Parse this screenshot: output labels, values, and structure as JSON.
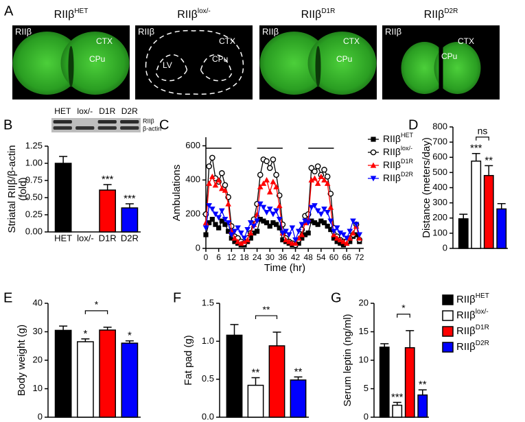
{
  "panel_a": {
    "letter": "A",
    "images": [
      {
        "title": "RIIβ",
        "sup": "HET",
        "stain": "RIIβ",
        "labels": [
          "CTX",
          "CPu"
        ]
      },
      {
        "title": "RIIβ",
        "sup": "lox/-",
        "stain": "RIIβ",
        "labels": [
          "CTX",
          "CPu",
          "LV"
        ]
      },
      {
        "title": "RIIβ",
        "sup": "D1R",
        "stain": "RIIβ",
        "labels": [
          "CTX",
          "CPu"
        ]
      },
      {
        "title": "RIIβ",
        "sup": "D2R",
        "stain": "RIIβ",
        "labels": [
          "CTX",
          "CPu"
        ]
      }
    ]
  },
  "chart_data": [
    {
      "type": "bar",
      "panel": "B",
      "ylabel_lines": [
        "Striatal RIIβ/β-actin",
        "(fold)"
      ],
      "blot": {
        "lanes": [
          "HET",
          "lox/-",
          "D1R",
          "D2R"
        ],
        "bands": [
          "RIIβ",
          "β-actin"
        ]
      },
      "categories": [
        "HET",
        "lox/-",
        "D1R",
        "D2R"
      ],
      "values": [
        1.0,
        0,
        0.61,
        0.35
      ],
      "errors": [
        0.1,
        null,
        0.08,
        0.06
      ],
      "colors": [
        "#000000",
        "#ffffff",
        "#ff0000",
        "#0000ff"
      ],
      "annotations": [
        null,
        null,
        "***",
        "***"
      ],
      "ylim": [
        0,
        1.25
      ],
      "yticks": [
        {
          "value": 0,
          "label": "0.00"
        },
        {
          "value": 0.25,
          "label": "0.25"
        },
        {
          "value": 0.5,
          "label": "0.50"
        },
        {
          "value": 0.75,
          "label": "0.75"
        },
        {
          "value": 1,
          "label": "1.00"
        },
        {
          "value": 1.25,
          "label": "1.25"
        }
      ]
    },
    {
      "type": "line",
      "panel": "C",
      "xlabel": "Time (hr)",
      "ylabel": "Ambulations",
      "dark_periods": [
        [
          0,
          12
        ],
        [
          24,
          36
        ],
        [
          48,
          60
        ]
      ],
      "x": [
        0,
        1.5,
        3,
        4.5,
        6,
        7.5,
        9,
        10.5,
        12,
        13.5,
        15,
        16.5,
        18,
        19.5,
        21,
        22.5,
        24,
        25.5,
        27,
        28.5,
        30,
        31.5,
        33,
        34.5,
        36,
        37.5,
        39,
        40.5,
        42,
        43.5,
        45,
        46.5,
        48,
        49.5,
        51,
        52.5,
        54,
        55.5,
        57,
        58.5,
        60,
        61.5,
        63,
        64.5,
        66,
        67.5,
        69,
        70.5,
        72
      ],
      "xlim": [
        0,
        74
      ],
      "xticks": [
        0,
        6,
        12,
        18,
        24,
        30,
        36,
        42,
        48,
        54,
        60,
        66,
        72
      ],
      "ylim": [
        0,
        650
      ],
      "yticks": [
        0,
        200,
        400,
        600
      ],
      "legend": "right",
      "series": [
        {
          "name": "RIIβ",
          "sup": "HET",
          "color": "#000000",
          "marker": "square",
          "values": [
            80,
            150,
            170,
            140,
            120,
            160,
            140,
            100,
            60,
            40,
            30,
            20,
            20,
            40,
            60,
            90,
            100,
            170,
            160,
            150,
            130,
            150,
            140,
            120,
            50,
            40,
            30,
            20,
            20,
            30,
            60,
            80,
            90,
            160,
            150,
            140,
            160,
            150,
            130,
            110,
            60,
            40,
            30,
            20,
            30,
            40,
            70,
            80,
            40
          ]
        },
        {
          "name": "RIIβ",
          "sup": "lox/-",
          "color": "#000000",
          "marker": "circle",
          "values": [
            200,
            480,
            530,
            410,
            390,
            440,
            370,
            300,
            130,
            70,
            60,
            40,
            30,
            60,
            90,
            170,
            260,
            430,
            520,
            510,
            470,
            520,
            430,
            310,
            140,
            60,
            40,
            30,
            20,
            50,
            110,
            190,
            200,
            470,
            450,
            480,
            430,
            460,
            420,
            320,
            120,
            70,
            50,
            40,
            40,
            60,
            80,
            140,
            50
          ]
        },
        {
          "name": "RIIβ",
          "sup": "D1R",
          "color": "#ff0000",
          "marker": "triangle-up",
          "values": [
            150,
            380,
            420,
            370,
            400,
            350,
            340,
            260,
            100,
            60,
            40,
            30,
            40,
            50,
            90,
            140,
            200,
            360,
            380,
            400,
            330,
            390,
            360,
            250,
            90,
            50,
            40,
            30,
            30,
            60,
            80,
            150,
            170,
            400,
            410,
            380,
            420,
            400,
            380,
            240,
            80,
            60,
            50,
            40,
            30,
            60,
            90,
            130,
            60
          ]
        },
        {
          "name": "RIIβ",
          "sup": "D2R",
          "color": "#0000ff",
          "marker": "triangle-down",
          "values": [
            120,
            250,
            230,
            200,
            180,
            220,
            170,
            150,
            80,
            100,
            120,
            90,
            60,
            110,
            150,
            130,
            160,
            260,
            240,
            210,
            230,
            200,
            220,
            170,
            90,
            100,
            80,
            120,
            50,
            100,
            140,
            160,
            150,
            240,
            250,
            220,
            200,
            230,
            210,
            160,
            100,
            120,
            90,
            80,
            60,
            100,
            160,
            140,
            80
          ]
        }
      ]
    },
    {
      "type": "bar",
      "panel": "D",
      "ylabel": "Distance (meters/day)",
      "categories": [
        null,
        null,
        null,
        null
      ],
      "values": [
        195,
        575,
        480,
        260
      ],
      "errors": [
        30,
        50,
        65,
        35
      ],
      "colors": [
        "#000000",
        "#ffffff",
        "#ff0000",
        "#0000ff"
      ],
      "annotations": [
        null,
        "***",
        "**",
        null
      ],
      "bracket": {
        "between": [
          1,
          2
        ],
        "label": "ns"
      },
      "ylim": [
        0,
        800
      ],
      "yticks": [
        0,
        100,
        200,
        300,
        400,
        500,
        600,
        700,
        800
      ]
    },
    {
      "type": "bar",
      "panel": "E",
      "ylabel": "Body weight (g)",
      "categories": [
        null,
        null,
        null,
        null
      ],
      "values": [
        30.5,
        26.5,
        30.6,
        26
      ],
      "errors": [
        1.5,
        1,
        1,
        0.8
      ],
      "colors": [
        "#000000",
        "#ffffff",
        "#ff0000",
        "#0000ff"
      ],
      "annotations": [
        null,
        "*",
        null,
        "*"
      ],
      "bracket": {
        "between": [
          1,
          2
        ],
        "label": "*"
      },
      "ylim": [
        0,
        40
      ],
      "yticks": [
        0,
        10,
        20,
        30,
        40
      ]
    },
    {
      "type": "bar",
      "panel": "F",
      "ylabel": "Fat pad (g)",
      "categories": [
        null,
        null,
        null,
        null
      ],
      "values": [
        1.08,
        0.42,
        0.94,
        0.49
      ],
      "errors": [
        0.14,
        0.1,
        0.18,
        0.04
      ],
      "colors": [
        "#000000",
        "#ffffff",
        "#ff0000",
        "#0000ff"
      ],
      "annotations": [
        null,
        "**",
        null,
        "**"
      ],
      "bracket": {
        "between": [
          1,
          2
        ],
        "label": "**"
      },
      "ylim": [
        0,
        1.5
      ],
      "yticks": [
        {
          "value": 0,
          "label": "0.0"
        },
        0.5,
        {
          "value": 1,
          "label": "1.0"
        },
        1.5
      ]
    },
    {
      "type": "bar",
      "panel": "G",
      "ylabel": "Serum leptin (ng/ml)",
      "categories": [
        null,
        null,
        null,
        null
      ],
      "values": [
        12.3,
        2.1,
        12.2,
        3.9
      ],
      "errors": [
        0.6,
        0.5,
        3,
        0.9
      ],
      "colors": [
        "#000000",
        "#ffffff",
        "#ff0000",
        "#0000ff"
      ],
      "annotations": [
        null,
        "***",
        null,
        "**"
      ],
      "bracket": {
        "between": [
          1,
          2
        ],
        "label": "*"
      },
      "ylim": [
        0,
        20
      ],
      "yticks": [
        0,
        5,
        10,
        15,
        20
      ]
    }
  ],
  "legend": {
    "entries": [
      {
        "name": "RIIβ",
        "sup": "HET",
        "color": "#000000"
      },
      {
        "name": "RIIβ",
        "sup": "lox/-",
        "color": "#ffffff"
      },
      {
        "name": "RIIβ",
        "sup": "D1R",
        "color": "#ff0000"
      },
      {
        "name": "RIIβ",
        "sup": "D2R",
        "color": "#0000ff"
      }
    ]
  }
}
